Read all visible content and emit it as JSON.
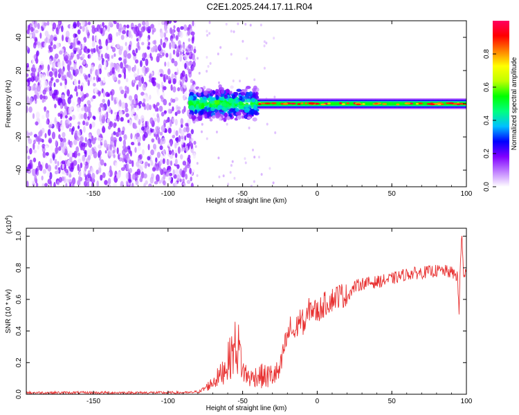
{
  "page": {
    "title": "C2E1.2025.244.17.11.R04"
  },
  "chart_data": [
    {
      "type": "heatmap",
      "title": "C2E1.2025.244.17.11.R04",
      "xlabel": "Height of straight line (km)",
      "ylabel": "Frequency (Hz)",
      "xlim": [
        -195,
        100
      ],
      "ylim": [
        -50,
        50
      ],
      "x_ticks": [
        -150,
        -100,
        -50,
        0,
        50,
        100
      ],
      "x_tick_labels": [
        "-150",
        "-100",
        "-50",
        "0",
        "50",
        "100"
      ],
      "y_ticks": [
        -40,
        -20,
        0,
        20,
        40
      ],
      "y_tick_labels": [
        "-40",
        "-20",
        "0",
        "20",
        "40"
      ],
      "colorbar": {
        "label": "Normalized spectral amplitude",
        "range": [
          0,
          1
        ],
        "ticks": [
          0.0,
          0.2,
          0.4,
          0.6,
          0.8
        ],
        "tick_labels": [
          "0.0",
          "0.2",
          "0.4",
          "0.6",
          "0.8"
        ],
        "colormap": [
          "#ffffff",
          "#c080ff",
          "#8000ff",
          "#0000ff",
          "#00c0ff",
          "#00ff80",
          "#00ff00",
          "#c0ff00",
          "#ffff00",
          "#ff8000",
          "#ff0000",
          "#ff0060"
        ]
      },
      "regions": [
        {
          "x_range": [
            -195,
            -85
          ],
          "description": "noise",
          "max_amplitude": 0.2
        },
        {
          "x_range": [
            -85,
            -40
          ],
          "center_freq": 0,
          "half_width_hz": 6,
          "max_amplitude": 0.6
        },
        {
          "x_range": [
            -40,
            100
          ],
          "center_freq": 0,
          "half_width_hz": 3,
          "max_amplitude": 1.0
        }
      ]
    },
    {
      "type": "line",
      "xlabel": "Height of straight line (km)",
      "ylabel": "SNR (10 * v/v)",
      "y_multiplier_label": "(x10",
      "y_multiplier_exp": "4",
      "xlim": [
        -195,
        100
      ],
      "ylim": [
        0,
        1.05
      ],
      "x_ticks": [
        -150,
        -100,
        -50,
        0,
        50,
        100
      ],
      "x_tick_labels": [
        "-150",
        "-100",
        "-50",
        "0",
        "50",
        "100"
      ],
      "y_ticks": [
        0.0,
        0.2,
        0.4,
        0.6,
        0.8,
        1.0
      ],
      "y_tick_labels": [
        "0.0",
        "0.2",
        "0.4",
        "0.6",
        "0.8",
        "1.0"
      ],
      "line_color": "#e83030",
      "series": [
        {
          "x": [
            -195,
            -180,
            -160,
            -140,
            -120,
            -100,
            -85,
            -78,
            -72,
            -65,
            -60,
            -55,
            -52,
            -50,
            -45,
            -40,
            -35,
            -30,
            -25,
            -22,
            -18,
            -15,
            -12,
            -8,
            -5,
            0,
            5,
            10,
            15,
            20,
            25,
            30,
            40,
            50,
            60,
            70,
            80,
            85,
            90,
            94,
            95,
            96,
            97,
            98,
            100
          ],
          "y": [
            0.01,
            0.01,
            0.01,
            0.01,
            0.01,
            0.01,
            0.01,
            0.02,
            0.06,
            0.12,
            0.2,
            0.3,
            0.28,
            0.15,
            0.1,
            0.12,
            0.11,
            0.12,
            0.14,
            0.3,
            0.42,
            0.38,
            0.48,
            0.44,
            0.55,
            0.52,
            0.57,
            0.6,
            0.63,
            0.62,
            0.68,
            0.7,
            0.71,
            0.73,
            0.76,
            0.77,
            0.78,
            0.78,
            0.77,
            0.75,
            0.5,
            0.85,
            1.0,
            0.76,
            0.77
          ]
        }
      ]
    }
  ]
}
